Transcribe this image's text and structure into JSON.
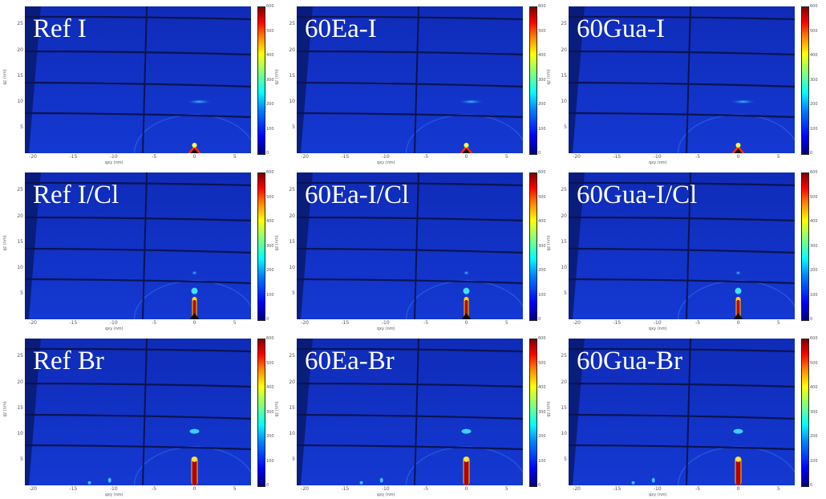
{
  "panels": [
    {
      "label": "Ref I",
      "intensity": "low"
    },
    {
      "label": "60Ea-I",
      "intensity": "low"
    },
    {
      "label": "60Gua-I",
      "intensity": "low"
    },
    {
      "label": "Ref I/Cl",
      "intensity": "medium"
    },
    {
      "label": "60Ea-I/Cl",
      "intensity": "medium"
    },
    {
      "label": "60Gua-I/Cl",
      "intensity": "medium"
    },
    {
      "label": "Ref Br",
      "intensity": "high"
    },
    {
      "label": "60Ea-Br",
      "intensity": "high"
    },
    {
      "label": "60Gua-Br",
      "intensity": "high"
    }
  ],
  "axes": {
    "x_label": "qxy (nm)",
    "y_label": "qz (nm)",
    "x_ticks": [
      "-20",
      "-15",
      "-10",
      "-5",
      "0",
      "5"
    ],
    "y_ticks": [
      "25",
      "20",
      "15",
      "10",
      "5"
    ]
  },
  "colorbar": {
    "ticks": [
      "600",
      "500",
      "400",
      "300",
      "200",
      "100",
      "0"
    ],
    "colors": [
      "#00007f",
      "#0000ff",
      "#00ffff",
      "#ffff00",
      "#ff0000",
      "#7f0000"
    ]
  },
  "colors": {
    "detector_background": "#1030c8",
    "detector_gap": "#0a1450"
  }
}
